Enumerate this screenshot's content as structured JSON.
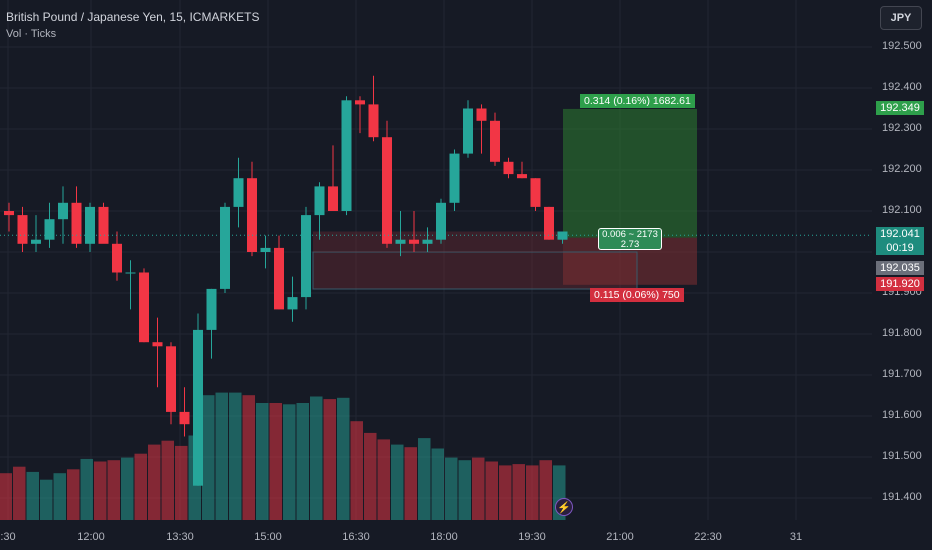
{
  "header": {
    "title": "British Pound / Japanese Yen, 15, ICMARKETS",
    "volume_label": "Vol · Ticks",
    "currency_button": "JPY"
  },
  "colors": {
    "up": "#26a69a",
    "down": "#f23645",
    "target_zone": "#2e7d32",
    "stop_zone": "#7f2f33",
    "background": "#161a25"
  },
  "icons": {
    "event": "lightning-icon"
  },
  "position_tool": {
    "entry_price": 192.035,
    "target_price": 192.349,
    "stop_price": 191.92,
    "target_label": "0.314 (0.16%) 1682.61",
    "stop_label": "0.115 (0.06%) 750",
    "center_line1": "0.006 ~ 2173",
    "center_line2": "2.73"
  },
  "price_scale": {
    "current_price": "192.041",
    "countdown": "00:19",
    "entry_tag": "192.035",
    "target_tag": "192.349",
    "stop_tag": "191.920"
  },
  "chart_data": {
    "type": "candlestick",
    "title": "British Pound / Japanese Yen, 15, ICMARKETS",
    "x_ticks": [
      ":30",
      "12:00",
      "13:30",
      "15:00",
      "16:30",
      "18:00",
      "19:30",
      "21:00",
      "22:30",
      "31"
    ],
    "y_ticks": [
      "192.500",
      "192.400",
      "192.300",
      "192.200",
      "192.100",
      "192.000",
      "191.900",
      "191.800",
      "191.700",
      "191.600",
      "191.500",
      "191.400"
    ],
    "ylim": [
      191.35,
      192.56
    ],
    "grid": true,
    "candles": [
      {
        "o": 192.1,
        "h": 192.12,
        "l": 192.05,
        "c": 192.09
      },
      {
        "o": 192.09,
        "h": 192.11,
        "l": 192.0,
        "c": 192.02
      },
      {
        "o": 192.02,
        "h": 192.09,
        "l": 192.0,
        "c": 192.03
      },
      {
        "o": 192.03,
        "h": 192.12,
        "l": 192.01,
        "c": 192.08
      },
      {
        "o": 192.08,
        "h": 192.16,
        "l": 192.02,
        "c": 192.12
      },
      {
        "o": 192.12,
        "h": 192.16,
        "l": 192.01,
        "c": 192.02
      },
      {
        "o": 192.02,
        "h": 192.12,
        "l": 192.0,
        "c": 192.11
      },
      {
        "o": 192.11,
        "h": 192.12,
        "l": 192.03,
        "c": 192.02
      },
      {
        "o": 192.02,
        "h": 192.05,
        "l": 191.93,
        "c": 191.95
      },
      {
        "o": 191.95,
        "h": 191.98,
        "l": 191.86,
        "c": 191.95
      },
      {
        "o": 191.95,
        "h": 191.96,
        "l": 191.78,
        "c": 191.78
      },
      {
        "o": 191.78,
        "h": 191.84,
        "l": 191.67,
        "c": 191.77
      },
      {
        "o": 191.77,
        "h": 191.78,
        "l": 191.58,
        "c": 191.61
      },
      {
        "o": 191.61,
        "h": 191.67,
        "l": 191.55,
        "c": 191.58
      },
      {
        "o": 191.43,
        "h": 191.85,
        "l": 191.43,
        "c": 191.81
      },
      {
        "o": 191.81,
        "h": 191.91,
        "l": 191.74,
        "c": 191.91
      },
      {
        "o": 191.91,
        "h": 192.12,
        "l": 191.9,
        "c": 192.11
      },
      {
        "o": 192.11,
        "h": 192.23,
        "l": 192.06,
        "c": 192.18
      },
      {
        "o": 192.18,
        "h": 192.22,
        "l": 191.99,
        "c": 192.0
      },
      {
        "o": 192.0,
        "h": 192.04,
        "l": 191.96,
        "c": 192.01
      },
      {
        "o": 192.01,
        "h": 192.04,
        "l": 191.86,
        "c": 191.86
      },
      {
        "o": 191.86,
        "h": 191.94,
        "l": 191.83,
        "c": 191.89
      },
      {
        "o": 191.89,
        "h": 192.11,
        "l": 191.86,
        "c": 192.09
      },
      {
        "o": 192.09,
        "h": 192.17,
        "l": 192.03,
        "c": 192.16
      },
      {
        "o": 192.16,
        "h": 192.26,
        "l": 192.11,
        "c": 192.1
      },
      {
        "o": 192.1,
        "h": 192.38,
        "l": 192.09,
        "c": 192.37
      },
      {
        "o": 192.37,
        "h": 192.38,
        "l": 192.29,
        "c": 192.36
      },
      {
        "o": 192.36,
        "h": 192.43,
        "l": 192.27,
        "c": 192.28
      },
      {
        "o": 192.28,
        "h": 192.32,
        "l": 192.01,
        "c": 192.02
      },
      {
        "o": 192.02,
        "h": 192.1,
        "l": 191.99,
        "c": 192.03
      },
      {
        "o": 192.03,
        "h": 192.1,
        "l": 192.0,
        "c": 192.02
      },
      {
        "o": 192.02,
        "h": 192.06,
        "l": 192.0,
        "c": 192.03
      },
      {
        "o": 192.03,
        "h": 192.13,
        "l": 192.02,
        "c": 192.12
      },
      {
        "o": 192.12,
        "h": 192.25,
        "l": 192.1,
        "c": 192.24
      },
      {
        "o": 192.24,
        "h": 192.37,
        "l": 192.23,
        "c": 192.35
      },
      {
        "o": 192.35,
        "h": 192.36,
        "l": 192.24,
        "c": 192.32
      },
      {
        "o": 192.32,
        "h": 192.34,
        "l": 192.21,
        "c": 192.22
      },
      {
        "o": 192.22,
        "h": 192.23,
        "l": 192.18,
        "c": 192.19
      },
      {
        "o": 192.19,
        "h": 192.22,
        "l": 192.18,
        "c": 192.18
      },
      {
        "o": 192.18,
        "h": 192.18,
        "l": 192.1,
        "c": 192.11
      },
      {
        "o": 192.11,
        "h": 192.11,
        "l": 192.03,
        "c": 192.03
      },
      {
        "o": 192.03,
        "h": 192.05,
        "l": 192.02,
        "c": 192.05
      }
    ],
    "volume_max": 100,
    "volumes": [
      36,
      41,
      37,
      31,
      36,
      39,
      47,
      45,
      46,
      48,
      51,
      58,
      61,
      57,
      65,
      96,
      98,
      98,
      96,
      90,
      90,
      89,
      90,
      95,
      93,
      94,
      76,
      67,
      62,
      58,
      56,
      63,
      55,
      48,
      46,
      48,
      45,
      42,
      43,
      42,
      46,
      42
    ]
  }
}
